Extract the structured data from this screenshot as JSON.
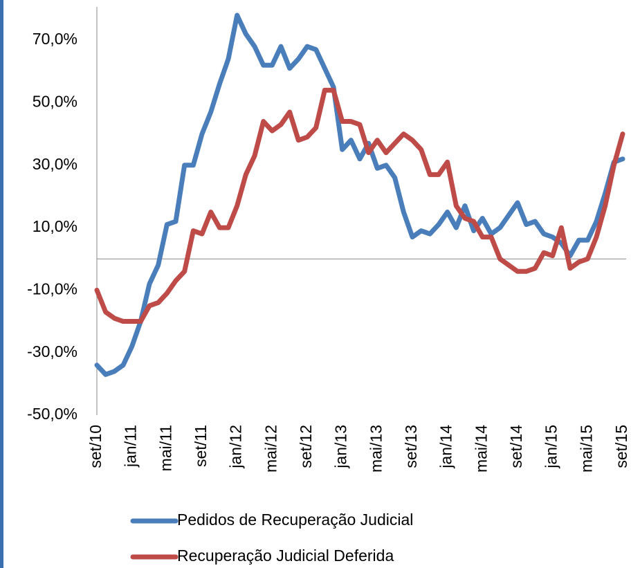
{
  "chart_data": {
    "type": "line",
    "categories": [
      "set/10",
      null,
      null,
      null,
      "jan/11",
      null,
      null,
      null,
      "mai/11",
      null,
      null,
      null,
      "set/11",
      null,
      null,
      null,
      "jan/12",
      null,
      null,
      null,
      "mai/12",
      null,
      null,
      null,
      "set/12",
      null,
      null,
      null,
      "jan/13",
      null,
      null,
      null,
      "mai/13",
      null,
      null,
      null,
      "set/13",
      null,
      null,
      null,
      "jan/14",
      null,
      null,
      null,
      "mai/14",
      null,
      null,
      null,
      "set/14",
      null,
      null,
      null,
      "jan/15",
      null,
      null,
      null,
      "mai/15",
      null,
      null,
      null,
      "set/15"
    ],
    "series": [
      {
        "name": "Pedidos de Recuperação Judicial",
        "color": "#4a7ebb",
        "values": [
          -34,
          -37,
          -36,
          -34,
          -28,
          -20,
          -8,
          -2,
          11,
          12,
          30,
          30,
          40,
          47,
          56,
          64,
          78,
          72,
          68,
          62,
          62,
          68,
          61,
          64,
          68,
          67,
          61,
          55,
          35,
          38,
          32,
          37,
          29,
          30,
          26,
          15,
          7,
          9,
          8,
          11,
          15,
          10,
          17,
          9,
          13,
          8,
          10,
          14,
          18,
          11,
          12,
          8,
          7,
          5,
          1,
          6,
          6,
          12,
          21,
          31,
          32
        ]
      },
      {
        "name": "Recuperação Judicial Deferida",
        "color": "#be4b48",
        "values": [
          -10,
          -17,
          -19,
          -20,
          -20,
          -20,
          -15,
          -14,
          -11,
          -7,
          -4,
          9,
          8,
          15,
          10,
          10,
          17,
          27,
          33,
          44,
          41,
          43,
          47,
          38,
          39,
          42,
          54,
          54,
          44,
          44,
          43,
          34,
          38,
          34,
          37,
          40,
          38,
          35,
          27,
          27,
          31,
          17,
          13,
          12,
          7,
          7,
          0,
          -2,
          -4,
          -4,
          -3,
          2,
          1,
          10,
          -3,
          -1,
          0,
          7,
          17,
          30,
          40
        ]
      }
    ],
    "ylim": [
      -50,
      80
    ],
    "yticks": [
      {
        "value": -50,
        "label": "-50,0%"
      },
      {
        "value": -30,
        "label": "-30,0%"
      },
      {
        "value": -10,
        "label": "-10,0%"
      },
      {
        "value": 10,
        "label": "10,0%"
      },
      {
        "value": 30,
        "label": "30,0%"
      },
      {
        "value": 50,
        "label": "50,0%"
      },
      {
        "value": 70,
        "label": "70,0%"
      }
    ],
    "zero_line": 0
  }
}
